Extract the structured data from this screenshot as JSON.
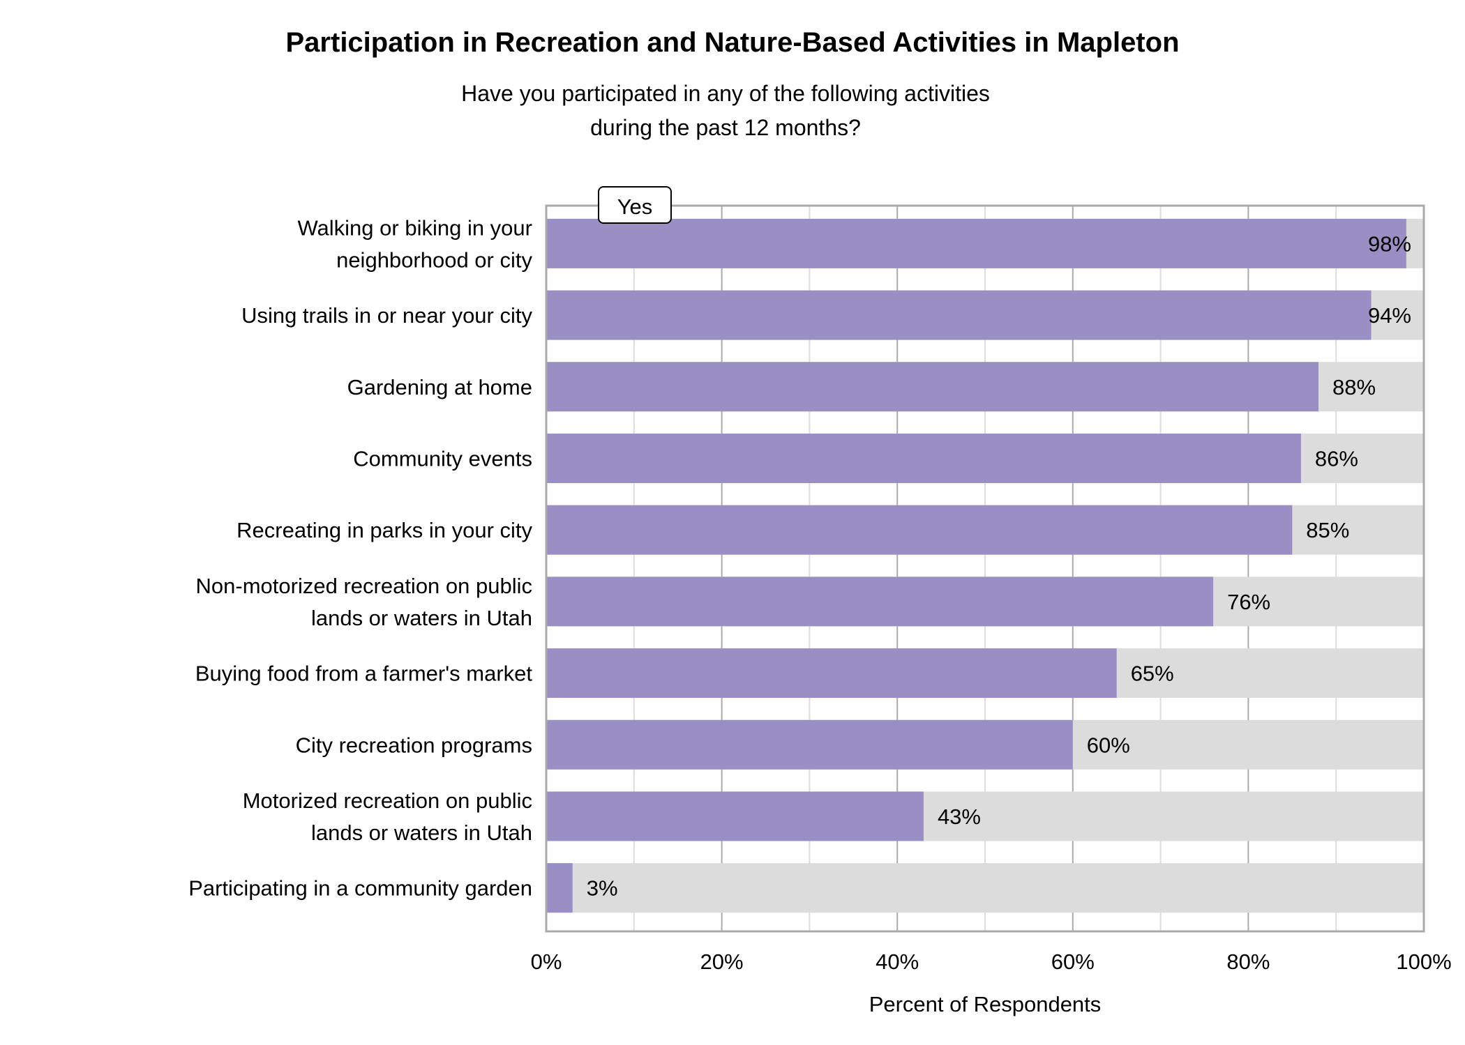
{
  "chart_data": {
    "type": "bar",
    "orientation": "horizontal",
    "title": "Participation in Recreation and Nature-Based Activities in Mapleton",
    "subtitle": [
      "Have you participated in any of the following activities",
      "during the past 12 months?"
    ],
    "xlabel": "Percent of Respondents",
    "ylabel": "",
    "xlim": [
      0,
      100
    ],
    "xticks": [
      "0%",
      "20%",
      "40%",
      "60%",
      "80%",
      "100%"
    ],
    "grid": true,
    "legend": {
      "position": "top-left",
      "entries": [
        "Yes"
      ]
    },
    "categories": [
      [
        "Walking or biking in your",
        "neighborhood or city"
      ],
      [
        "Using trails in or near your city"
      ],
      [
        "Gardening at home"
      ],
      [
        "Community events"
      ],
      [
        "Recreating in parks in your city"
      ],
      [
        "Non-motorized recreation on public",
        "lands or waters in Utah"
      ],
      [
        "Buying food from a farmer's market"
      ],
      [
        "City recreation programs"
      ],
      [
        "Motorized recreation on public",
        "lands or waters in Utah"
      ],
      [
        "Participating in a community garden"
      ]
    ],
    "series": [
      {
        "name": "Yes",
        "values": [
          98,
          94,
          88,
          86,
          85,
          76,
          65,
          60,
          43,
          3
        ],
        "color": "#998fc4"
      }
    ],
    "background_bar_color": "#dcdcdc",
    "data_labels": [
      "98%",
      "94%",
      "88%",
      "86%",
      "85%",
      "76%",
      "65%",
      "60%",
      "43%",
      "3%"
    ]
  }
}
